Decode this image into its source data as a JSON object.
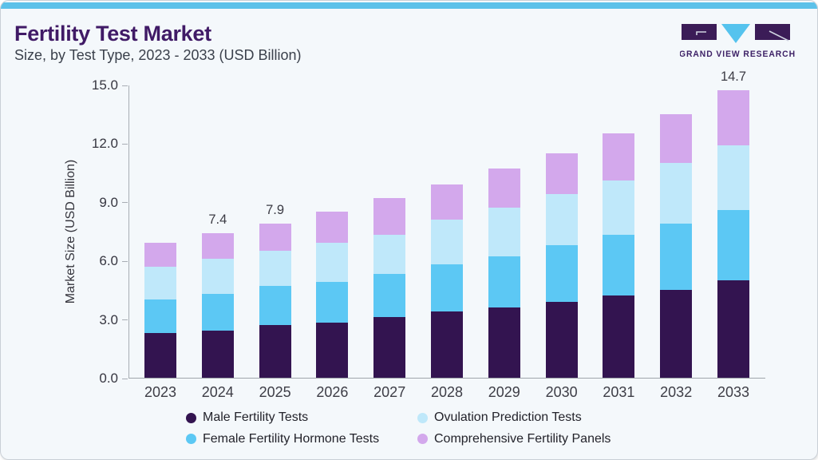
{
  "header": {
    "title": "Fertility Test Market",
    "subtitle": "Size, by Test Type, 2023 - 2033 (USD Billion)"
  },
  "logo": {
    "wordmark": "GRAND VIEW RESEARCH"
  },
  "colors": {
    "accent_bar": "#5cc1e9",
    "title_text": "#401a66",
    "logo_purple": "#3b1c57",
    "logo_triangle": "#55c3ee",
    "logo_wordmark": "#3d2166",
    "card_background": "#f4f8fb"
  },
  "chart_data": {
    "type": "bar",
    "stacked": true,
    "title": "Fertility Test Market Size, by Test Type, 2023 - 2033 (USD Billion)",
    "xlabel": "",
    "ylabel": "Market Size (USD Billion)",
    "ylim": [
      0,
      15
    ],
    "yticks": [
      0,
      3,
      6,
      9,
      12,
      15
    ],
    "ytick_labels": [
      "0.0",
      "3.0",
      "6.0",
      "9.0",
      "12.0",
      "15.0"
    ],
    "grid": false,
    "legend_position": "bottom",
    "categories": [
      "2023",
      "2024",
      "2025",
      "2026",
      "2027",
      "2028",
      "2029",
      "2030",
      "2031",
      "2032",
      "2033"
    ],
    "series": [
      {
        "name": "Male Fertility Tests",
        "color": "#331450",
        "values": [
          2.3,
          2.4,
          2.7,
          2.8,
          3.1,
          3.4,
          3.6,
          3.9,
          4.2,
          4.5,
          5.0
        ]
      },
      {
        "name": "Female Fertility Hormone Tests",
        "color": "#5cc8f4",
        "values": [
          1.7,
          1.9,
          2.0,
          2.1,
          2.2,
          2.4,
          2.6,
          2.9,
          3.1,
          3.4,
          3.6
        ]
      },
      {
        "name": "Ovulation Prediction Tests",
        "color": "#bfe8fa",
        "values": [
          1.7,
          1.8,
          1.8,
          2.0,
          2.0,
          2.3,
          2.5,
          2.6,
          2.8,
          3.1,
          3.3
        ]
      },
      {
        "name": "Comprehensive Fertility Panels",
        "color": "#d3a8ec",
        "values": [
          1.2,
          1.3,
          1.4,
          1.6,
          1.9,
          1.8,
          2.0,
          2.1,
          2.4,
          2.5,
          2.8
        ]
      }
    ],
    "bar_totals": [
      6.9,
      7.4,
      7.9,
      8.5,
      9.2,
      9.9,
      10.7,
      11.5,
      12.5,
      13.5,
      14.7
    ],
    "bar_value_labels": [
      "",
      "7.4",
      "7.9",
      "",
      "",
      "",
      "",
      "",
      "",
      "",
      "14.7"
    ]
  },
  "legend": {
    "items": [
      {
        "label": "Male Fertility Tests",
        "color": "#331450"
      },
      {
        "label": "Ovulation Prediction Tests",
        "color": "#bfe8fa"
      },
      {
        "label": "Female Fertility Hormone Tests",
        "color": "#5cc8f4"
      },
      {
        "label": "Comprehensive Fertility Panels",
        "color": "#d3a8ec"
      }
    ]
  }
}
